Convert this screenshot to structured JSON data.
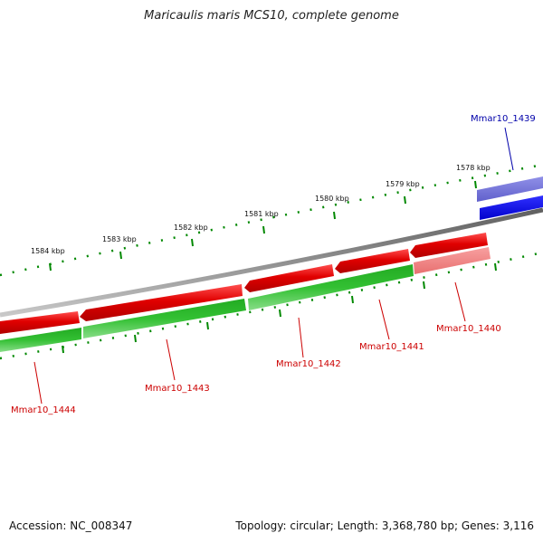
{
  "title": "Maricaulis maris MCS10, complete genome",
  "footer": {
    "accession": "Accession: NC_008347",
    "summary": "Topology: circular; Length: 3,368,780 bp; Genes: 3,116"
  },
  "colors": {
    "backbone": "#808080",
    "gene_red": "#e00000",
    "gene_red_light": "#f08080",
    "gene_green": "#33bb33",
    "gene_blue": "#0000ee",
    "gene_blue_light": "#7070d8",
    "tick_green": "#008800",
    "label_red": "#cc0000",
    "label_blue": "#0000aa"
  },
  "tick_labels": [
    "1578 kbp",
    "1579 kbp",
    "1580 kbp",
    "1581 kbp",
    "1582 kbp",
    "1583 kbp",
    "1584 kbp"
  ],
  "genes": [
    {
      "name": "Mmar10_1439",
      "strand": "+",
      "color": "blue"
    },
    {
      "name": "Mmar10_1440",
      "strand": "-",
      "color": "red-light"
    },
    {
      "name": "Mmar10_1441",
      "strand": "-",
      "color": "red"
    },
    {
      "name": "Mmar10_1442",
      "strand": "-",
      "color": "red"
    },
    {
      "name": "Mmar10_1443",
      "strand": "-",
      "color": "red"
    },
    {
      "name": "Mmar10_1444",
      "strand": "-",
      "color": "red"
    }
  ]
}
